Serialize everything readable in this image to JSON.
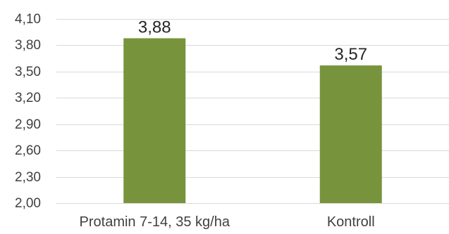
{
  "chart_data": {
    "type": "bar",
    "categories": [
      "Protamin 7-14, 35 kg/ha",
      "Kontroll"
    ],
    "values": [
      3.88,
      3.57
    ],
    "data_labels": [
      "3,88",
      "3,57"
    ],
    "y_ticks": [
      2.0,
      2.3,
      2.6,
      2.9,
      3.2,
      3.5,
      3.8,
      4.1
    ],
    "y_tick_labels": [
      "2,00",
      "2,30",
      "2,60",
      "2,90",
      "3,20",
      "3,50",
      "3,80",
      "4,10"
    ],
    "ylim": [
      2.0,
      4.1
    ],
    "grid": true,
    "legend": "none",
    "bar_color": "#77933c"
  }
}
